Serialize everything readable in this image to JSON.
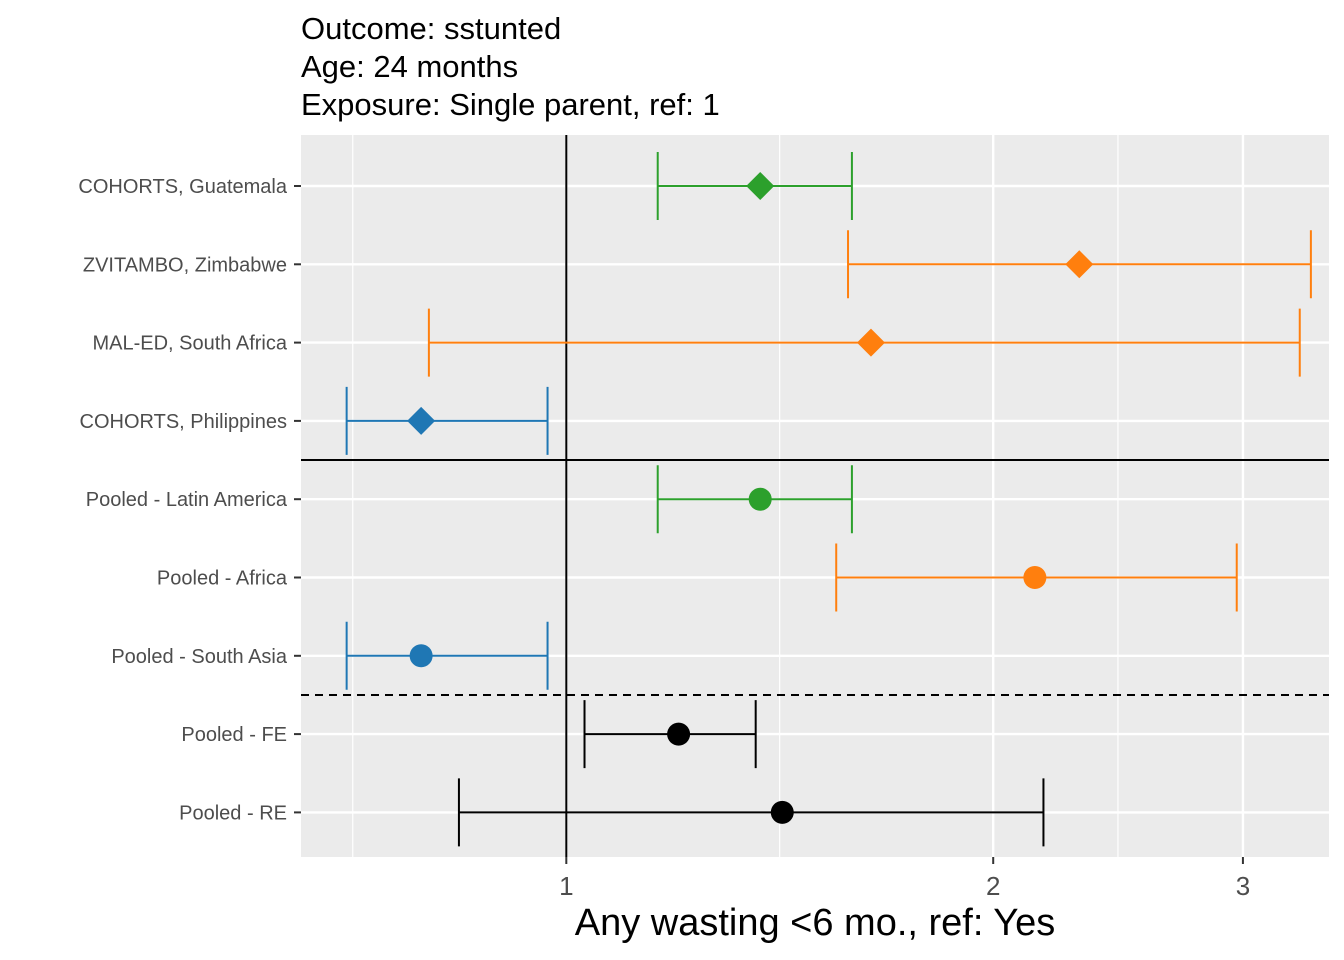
{
  "title_lines": [
    "Outcome: sstunted",
    "Age: 24 months",
    "Exposure: Single parent, ref: 1"
  ],
  "chart_data": {
    "type": "forest",
    "xlabel": "Any wasting  <6 mo., ref: Yes",
    "x_scale": "log",
    "xlim": [
      0.65,
      3.45
    ],
    "x_ticks": [
      1,
      2,
      3
    ],
    "x_minor_ticks": [
      0.707,
      1.414,
      2.449
    ],
    "reference_line": 1,
    "colors": {
      "latin_america": "#2ca02c",
      "africa": "#ff7f0e",
      "south_asia": "#1f77b4",
      "pooled_overall": "#000000",
      "panel_bg": "#ebebeb",
      "grid": "#ffffff"
    },
    "rows": [
      {
        "label": "COHORTS, Guatemala",
        "estimate": 1.37,
        "ci_lower": 1.16,
        "ci_upper": 1.59,
        "shape": "diamond",
        "color_key": "latin_america"
      },
      {
        "label": "ZVITAMBO, Zimbabwe",
        "estimate": 2.3,
        "ci_lower": 1.58,
        "ci_upper": 3.35,
        "shape": "diamond",
        "color_key": "africa"
      },
      {
        "label": "MAL-ED, South Africa",
        "estimate": 1.64,
        "ci_lower": 0.8,
        "ci_upper": 3.29,
        "shape": "diamond",
        "color_key": "africa"
      },
      {
        "label": "COHORTS, Philippines",
        "estimate": 0.79,
        "ci_lower": 0.7,
        "ci_upper": 0.97,
        "shape": "diamond",
        "color_key": "south_asia"
      },
      {
        "label": "Pooled - Latin America",
        "estimate": 1.37,
        "ci_lower": 1.16,
        "ci_upper": 1.59,
        "shape": "circle",
        "color_key": "latin_america"
      },
      {
        "label": "Pooled - Africa",
        "estimate": 2.14,
        "ci_lower": 1.55,
        "ci_upper": 2.97,
        "shape": "circle",
        "color_key": "africa"
      },
      {
        "label": "Pooled - South Asia",
        "estimate": 0.79,
        "ci_lower": 0.7,
        "ci_upper": 0.97,
        "shape": "circle",
        "color_key": "south_asia"
      },
      {
        "label": "Pooled - FE",
        "estimate": 1.2,
        "ci_lower": 1.03,
        "ci_upper": 1.36,
        "shape": "circle",
        "color_key": "pooled_overall"
      },
      {
        "label": "Pooled - RE",
        "estimate": 1.42,
        "ci_lower": 0.84,
        "ci_upper": 2.17,
        "shape": "circle",
        "color_key": "pooled_overall"
      }
    ],
    "separators": [
      {
        "between_rows": [
          3,
          4
        ],
        "style": "solid"
      },
      {
        "between_rows": [
          6,
          7
        ],
        "style": "dashed"
      }
    ]
  }
}
